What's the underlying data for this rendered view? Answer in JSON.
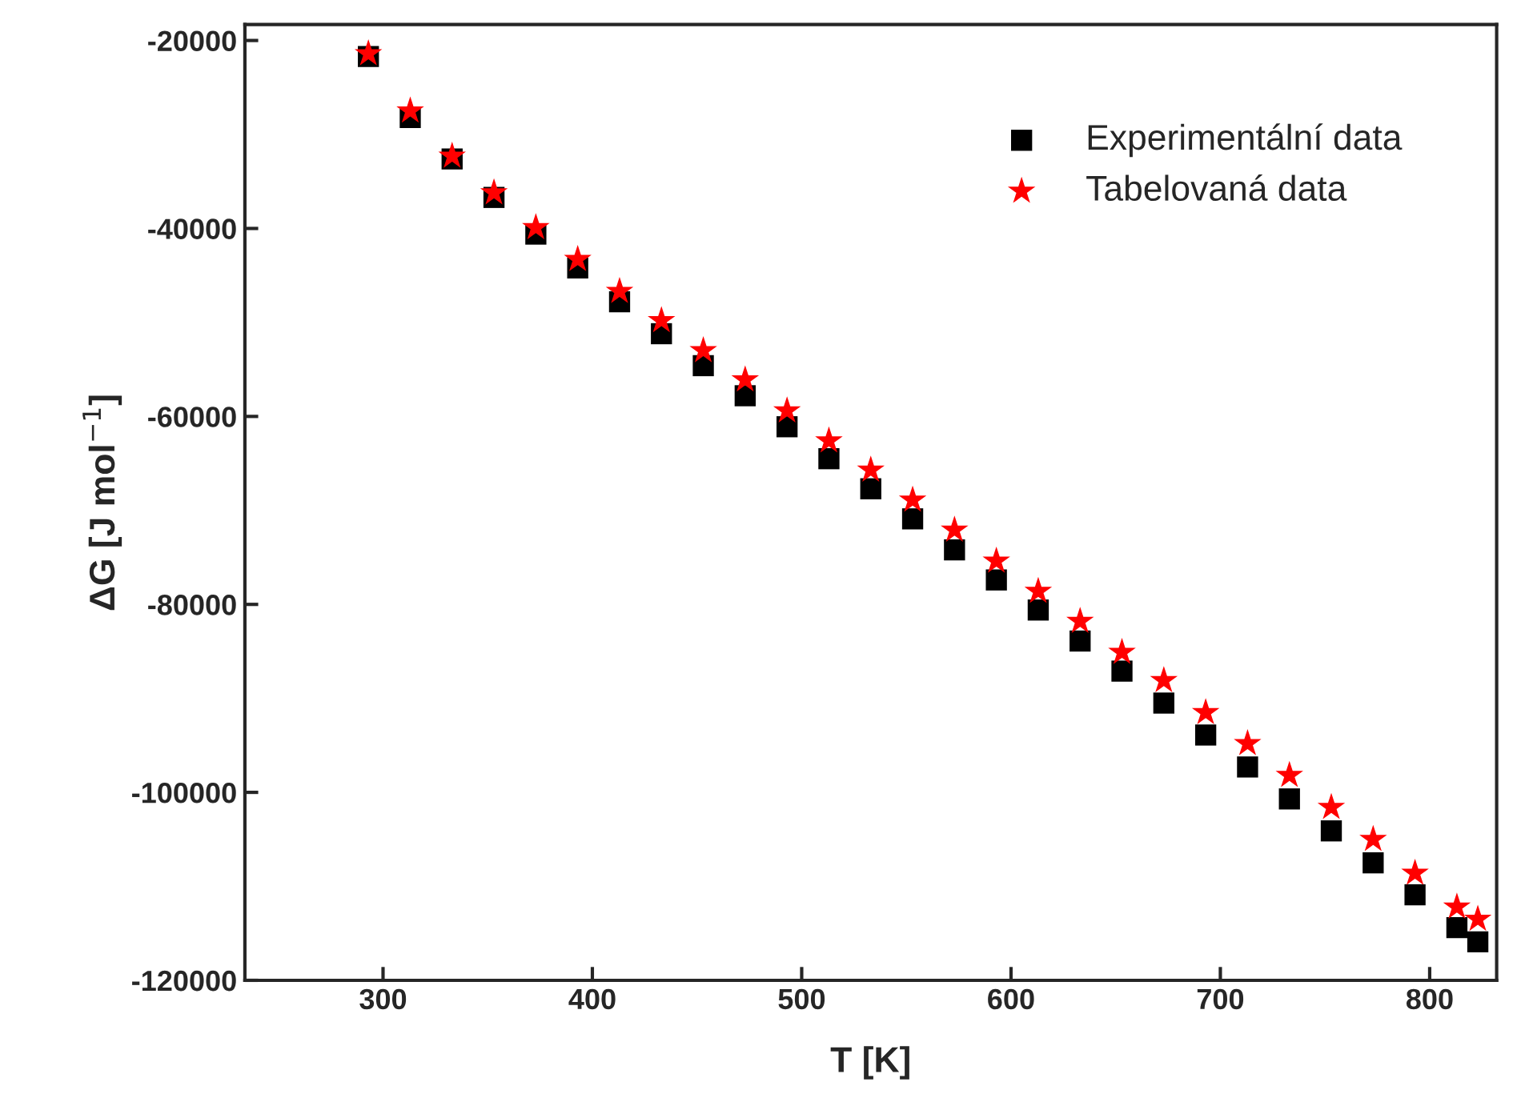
{
  "chart_data": {
    "type": "scatter",
    "xlabel": "T [K]",
    "ylabel": "ΔG [J mol$^{−1}$]",
    "x": [
      293,
      313,
      333,
      353,
      373,
      393,
      413,
      433,
      453,
      473,
      493,
      513,
      533,
      553,
      573,
      593,
      613,
      633,
      653,
      673,
      693,
      713,
      733,
      753,
      773,
      793,
      813,
      823
    ],
    "series": [
      {
        "name": "Experimentální data",
        "color": "#000000",
        "marker": "square",
        "values": [
          -21700,
          -28200,
          -32600,
          -36700,
          -40600,
          -44200,
          -47800,
          -51200,
          -54600,
          -57800,
          -61100,
          -64500,
          -67700,
          -70900,
          -74200,
          -77400,
          -80600,
          -83900,
          -87100,
          -90500,
          -93900,
          -97300,
          -100700,
          -104100,
          -107500,
          -110900,
          -114400,
          -115900
        ]
      },
      {
        "name": "Tabelovaná data",
        "color": "#ff0000",
        "marker": "star",
        "values": [
          -21400,
          -27500,
          -32300,
          -36200,
          -39900,
          -43300,
          -46700,
          -49800,
          -53000,
          -56100,
          -59400,
          -62600,
          -65700,
          -68900,
          -72100,
          -75400,
          -78600,
          -81800,
          -85100,
          -88100,
          -91500,
          -94800,
          -98200,
          -101600,
          -105000,
          -108600,
          -112200,
          -113500
        ]
      }
    ],
    "xlim": [
      234,
      832
    ],
    "ylim": [
      -120000,
      -18300
    ],
    "xticks": [
      300,
      400,
      500,
      600,
      700,
      800
    ],
    "yticks": [
      -120000,
      -100000,
      -80000,
      -60000,
      -40000,
      -20000
    ],
    "legend": "top right",
    "grid": false
  }
}
